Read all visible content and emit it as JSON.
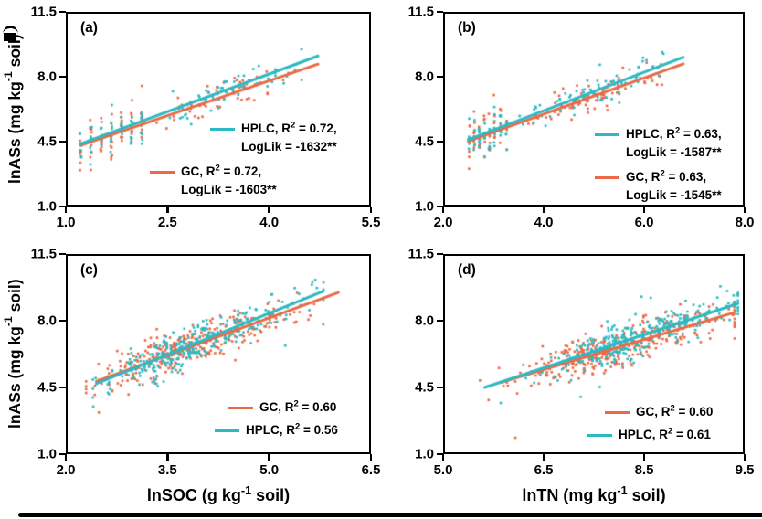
{
  "colors": {
    "hplc": "#2db9c3",
    "gc": "#eb6946",
    "axis": "#000000",
    "text": "#000000"
  },
  "marker": {
    "shape": "square",
    "size": 2.6
  },
  "chart_data": [
    {
      "id": "a",
      "label": "(a)",
      "type": "scatter",
      "x_axis": {
        "min": 1.0,
        "max": 5.5,
        "tick_labels": [
          "1.0",
          "2.5",
          "4.0",
          "5.5"
        ],
        "title": ""
      },
      "y_axis": {
        "min": 1.0,
        "max": 11.5,
        "tick_labels": [
          "1.0",
          "4.5",
          "8.0",
          "11.5"
        ],
        "title": "lnASs (mg kg⁻¹ soil)"
      },
      "legend": [
        {
          "series": "HPLC",
          "color_key": "hplc",
          "text_lines": [
            "HPLC, R² = 0.72,",
            "LogLik = -1632**"
          ],
          "pos": {
            "left": 158,
            "top": 118
          }
        },
        {
          "series": "GC",
          "color_key": "gc",
          "text_lines": [
            "GC, R² = 0.72,",
            "LogLik = -1603**"
          ],
          "pos": {
            "left": 92,
            "top": 165
          }
        }
      ],
      "series": [
        {
          "name": "GC",
          "color_key": "gc",
          "regression": {
            "x1": 1.22,
            "y1": 4.3,
            "x2": 4.72,
            "y2": 8.68
          },
          "scatter": {
            "seed": 101,
            "mode": "stripes",
            "stripes": [
              1.22,
              1.37,
              1.52,
              1.67,
              1.82,
              1.97,
              2.12
            ],
            "per_stripe": 10,
            "stripe_ysd": 0.65,
            "extra_count": 58,
            "extra_xmin": 2.2,
            "extra_xmax": 4.72,
            "extra_ysd": 0.45
          }
        },
        {
          "name": "HPLC",
          "color_key": "hplc",
          "regression": {
            "x1": 1.22,
            "y1": 4.38,
            "x2": 4.72,
            "y2": 9.12
          },
          "scatter": {
            "seed": 102,
            "mode": "stripes",
            "stripes": [
              1.22,
              1.37,
              1.52,
              1.67,
              1.82,
              1.97,
              2.12
            ],
            "per_stripe": 9,
            "stripe_ysd": 0.55,
            "extra_count": 58,
            "extra_xmin": 2.2,
            "extra_xmax": 4.72,
            "extra_ysd": 0.42
          }
        }
      ]
    },
    {
      "id": "b",
      "label": "(b)",
      "type": "scatter",
      "x_axis": {
        "min": 2.0,
        "max": 8.0,
        "tick_labels": [
          "2.0",
          "4.0",
          "6.0",
          "8.0"
        ],
        "title": ""
      },
      "y_axis": {
        "min": 1.0,
        "max": 11.5,
        "tick_labels": [
          "1.0",
          "4.5",
          "8.0",
          "11.5"
        ],
        "title": ""
      },
      "legend": [
        {
          "series": "HPLC",
          "color_key": "hplc",
          "text_lines": [
            "HPLC, R² = 0.63,",
            "LogLik = -1587**"
          ],
          "pos": {
            "left": 166,
            "top": 124
          }
        },
        {
          "series": "GC",
          "color_key": "gc",
          "text_lines": [
            "GC, R² = 0.63,",
            "LogLik = -1545**"
          ],
          "pos": {
            "left": 166,
            "top": 171
          }
        }
      ],
      "series": [
        {
          "name": "GC",
          "color_key": "gc",
          "regression": {
            "x1": 2.5,
            "y1": 4.52,
            "x2": 6.78,
            "y2": 8.7
          },
          "scatter": {
            "seed": 201,
            "mode": "stripes",
            "stripes": [
              2.52,
              2.62,
              2.72,
              2.82,
              2.92,
              3.02,
              3.14,
              3.26
            ],
            "per_stripe": 7,
            "stripe_ysd": 0.62,
            "extra_count": 78,
            "extra_xmin": 3.3,
            "extra_xmax": 6.78,
            "extra_ysd": 0.46
          }
        },
        {
          "name": "HPLC",
          "color_key": "hplc",
          "regression": {
            "x1": 2.5,
            "y1": 4.6,
            "x2": 6.78,
            "y2": 9.05
          },
          "scatter": {
            "seed": 202,
            "mode": "stripes",
            "stripes": [
              2.52,
              2.62,
              2.72,
              2.82,
              2.92,
              3.02,
              3.14,
              3.26
            ],
            "per_stripe": 7,
            "stripe_ysd": 0.58,
            "extra_count": 78,
            "extra_xmin": 3.3,
            "extra_xmax": 6.78,
            "extra_ysd": 0.44
          }
        }
      ]
    },
    {
      "id": "c",
      "label": "(c)",
      "type": "scatter",
      "x_axis": {
        "min": 2.0,
        "max": 6.5,
        "tick_labels": [
          "2.0",
          "3.5",
          "5.0",
          "6.5"
        ],
        "title": "lnSOC (g kg⁻¹ soil)"
      },
      "y_axis": {
        "min": 1.0,
        "max": 11.5,
        "tick_labels": [
          "1.0",
          "4.5",
          "8.0",
          "11.5"
        ],
        "title": "lnASs (mg kg⁻¹ soil)"
      },
      "legend": [
        {
          "series": "GC",
          "color_key": "gc",
          "text_lines": [
            "GC, R² = 0.60"
          ],
          "pos": {
            "left": 178,
            "top": 158
          }
        },
        {
          "series": "HPLC",
          "color_key": "hplc",
          "text_lines": [
            "HPLC, R² = 0.56"
          ],
          "pos": {
            "left": 163,
            "top": 183
          }
        }
      ],
      "series": [
        {
          "name": "GC",
          "color_key": "gc",
          "regression": {
            "x1": 2.45,
            "y1": 4.82,
            "x2": 6.02,
            "y2": 9.48
          },
          "scatter": {
            "seed": 301,
            "mode": "cluster",
            "count": 300,
            "x_mean": 3.7,
            "x_sd": 0.62,
            "x_min": 2.3,
            "x_max": 6.02,
            "x_right_stretch": 1.45,
            "ysd": 0.5,
            "outlier_count": 12,
            "outlier_ysd": 1.15
          }
        },
        {
          "name": "HPLC",
          "color_key": "hplc",
          "regression": {
            "x1": 2.45,
            "y1": 4.7,
            "x2": 5.8,
            "y2": 9.55
          },
          "scatter": {
            "seed": 302,
            "mode": "cluster",
            "count": 300,
            "x_mean": 3.88,
            "x_sd": 0.6,
            "x_min": 2.4,
            "x_max": 5.8,
            "x_right_stretch": 1.4,
            "ysd": 0.5,
            "outlier_count": 10,
            "outlier_ysd": 1.15
          }
        }
      ]
    },
    {
      "id": "d",
      "label": "(d)",
      "type": "scatter",
      "x_axis": {
        "min": 5.0,
        "max": 9.5,
        "tick_labels": [
          "5.0",
          "6.5",
          "8.5",
          "9.5"
        ],
        "title": "lnTN (mg kg⁻¹ soil)"
      },
      "y_axis": {
        "min": 1.0,
        "max": 11.5,
        "tick_labels": [
          "1.0",
          "4.5",
          "8.0",
          "11.5"
        ],
        "title": ""
      },
      "legend": [
        {
          "series": "GC",
          "color_key": "gc",
          "text_lines": [
            "GC, R² = 0.60"
          ],
          "pos": {
            "left": 177,
            "top": 163
          }
        },
        {
          "series": "HPLC",
          "color_key": "hplc",
          "text_lines": [
            "HPLC, R² = 0.61"
          ],
          "pos": {
            "left": 158,
            "top": 188
          }
        }
      ],
      "series": [
        {
          "name": "GC",
          "color_key": "gc",
          "regression": {
            "x1": 5.85,
            "y1": 4.75,
            "x2": 9.32,
            "y2": 8.4
          },
          "scatter": {
            "seed": 401,
            "mode": "cluster",
            "count": 320,
            "x_mean": 7.5,
            "x_sd": 0.72,
            "x_min": 5.55,
            "x_max": 9.35,
            "x_right_stretch": 1.35,
            "ysd": 0.52,
            "outlier_count": 14,
            "outlier_ysd": 1.15
          }
        },
        {
          "name": "HPLC",
          "color_key": "hplc",
          "regression": {
            "x1": 5.62,
            "y1": 4.5,
            "x2": 9.4,
            "y2": 8.9
          },
          "scatter": {
            "seed": 402,
            "mode": "cluster",
            "count": 320,
            "x_mean": 7.78,
            "x_sd": 0.6,
            "x_min": 5.6,
            "x_max": 9.4,
            "x_right_stretch": 1.4,
            "ysd": 0.45,
            "outlier_count": 10,
            "outlier_ysd": 1.1
          }
        }
      ]
    }
  ]
}
